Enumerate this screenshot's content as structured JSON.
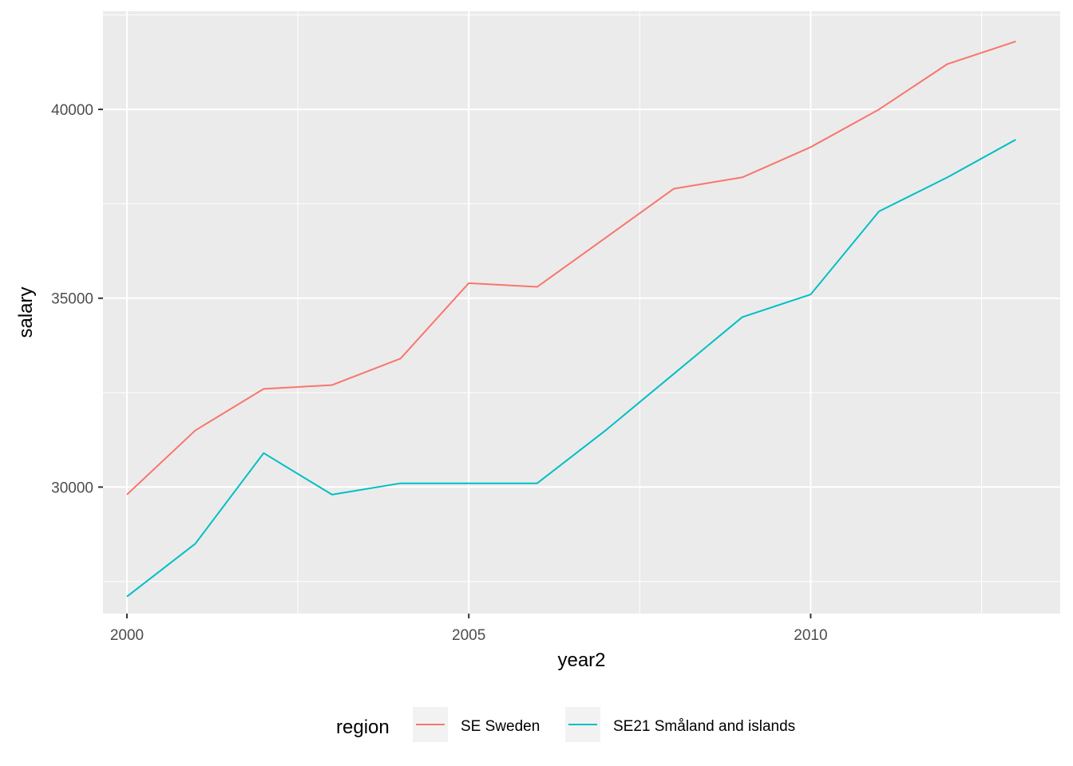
{
  "chart_data": {
    "type": "line",
    "xlabel": "year2",
    "ylabel": "salary",
    "xlim": [
      1999.65,
      2013.65
    ],
    "ylim": [
      26650,
      42600
    ],
    "x_ticks": [
      2000,
      2005,
      2010
    ],
    "x_tick_labels": [
      "2000",
      "2005",
      "2010"
    ],
    "x_minor_ticks": [
      2002.5,
      2007.5,
      2012.5
    ],
    "y_ticks": [
      30000,
      35000,
      40000
    ],
    "y_tick_labels": [
      "30000",
      "35000",
      "40000"
    ],
    "y_minor_ticks": [
      27500,
      32500,
      37500,
      42500
    ],
    "grid": true,
    "panel_background": "#ebebeb",
    "grid_color": "#ffffff",
    "legend": {
      "title": "region",
      "position": "bottom"
    },
    "x": [
      2000,
      2001,
      2002,
      2003,
      2004,
      2005,
      2006,
      2007,
      2008,
      2009,
      2010,
      2011,
      2012,
      2013
    ],
    "series": [
      {
        "name": "SE Sweden",
        "color": "#f8766d",
        "values": [
          29800,
          31500,
          32600,
          32700,
          33400,
          35400,
          35300,
          36600,
          37900,
          38200,
          39000,
          40000,
          41200,
          41800
        ]
      },
      {
        "name": "SE21 Småland and islands",
        "color": "#00bfc4",
        "values": [
          27100,
          28500,
          30900,
          29800,
          30100,
          30100,
          30100,
          31500,
          33000,
          34500,
          35100,
          37300,
          38200,
          39200
        ]
      }
    ]
  }
}
